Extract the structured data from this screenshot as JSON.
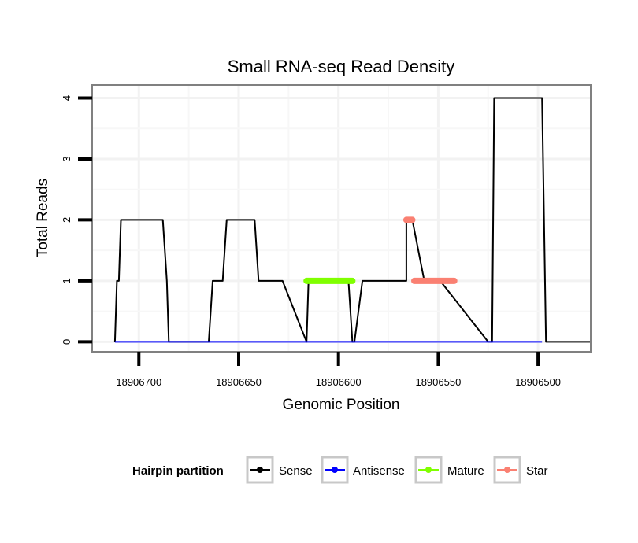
{
  "chart_data": {
    "type": "line",
    "title": "Small RNA-seq Read Density",
    "xlabel": "Genomic Position",
    "ylabel": "Total Reads",
    "xlim": [
      18906723,
      18906474
    ],
    "x_reversed": true,
    "ylim": [
      -0.15,
      4.2
    ],
    "x_ticks": [
      18906700,
      18906650,
      18906600,
      18906550,
      18906500
    ],
    "x_tick_labels": [
      "18906700",
      "18906650",
      "18906600",
      "18906550",
      "18906500"
    ],
    "y_ticks": [
      0,
      1,
      2,
      3,
      4
    ],
    "y_tick_labels": [
      "0",
      "1",
      "2",
      "3",
      "4"
    ],
    "grid": true,
    "legend": {
      "title": "Hairpin partition",
      "position": "bottom",
      "entries": [
        {
          "label": "Sense",
          "color": "#000000"
        },
        {
          "label": "Antisense",
          "color": "#0000ff"
        },
        {
          "label": "Mature",
          "color": "#80ff00"
        },
        {
          "label": "Star",
          "color": "#fa8072"
        }
      ]
    },
    "series": [
      {
        "name": "Sense",
        "color": "#000000",
        "x": [
          18906712,
          18906711,
          18906710,
          18906709,
          18906688,
          18906686,
          18906685,
          18906665,
          18906663,
          18906663,
          18906658,
          18906656,
          18906656,
          18906642,
          18906640,
          18906640,
          18906628,
          18906616,
          18906616,
          18906615,
          18906595,
          18906593,
          18906592,
          18906588,
          18906586,
          18906566,
          18906566,
          18906563,
          18906557,
          18906557,
          18906549,
          18906549,
          18906525,
          18906523,
          18906522,
          18906521,
          18906498,
          18906496,
          18906474
        ],
        "y": [
          0,
          1,
          1,
          2,
          2,
          1,
          0,
          0,
          1,
          1,
          1,
          2,
          2,
          2,
          1,
          1,
          1,
          0,
          0,
          1,
          1,
          0,
          0,
          1,
          1,
          1,
          2,
          2,
          1,
          1,
          1,
          1,
          0,
          0,
          4,
          4,
          4,
          0,
          0
        ]
      },
      {
        "name": "Antisense",
        "color": "#0000ff",
        "x": [
          18906712,
          18906498
        ],
        "y": [
          0,
          0
        ]
      },
      {
        "name": "Mature",
        "color": "#80ff00",
        "x": [
          18906616,
          18906593
        ],
        "y": [
          1,
          1
        ]
      },
      {
        "name": "Star",
        "color": "#fa8072",
        "segments": [
          {
            "x": [
              18906566,
              18906563
            ],
            "y": [
              2,
              2
            ]
          },
          {
            "x": [
              18906562,
              18906542
            ],
            "y": [
              1,
              1
            ]
          }
        ]
      }
    ]
  }
}
